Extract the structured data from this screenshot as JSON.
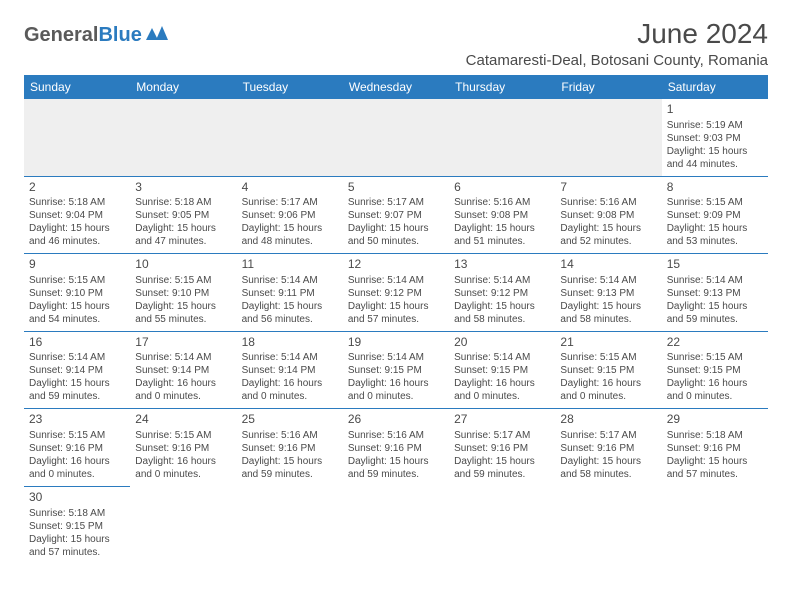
{
  "logo": {
    "part1": "General",
    "part2": "Blue"
  },
  "title": "June 2024",
  "location": "Catamaresti-Deal, Botosani County, Romania",
  "header_color": "#2b7bbf",
  "border_color": "#2b7bbf",
  "empty_bg": "#efefef",
  "days": [
    "Sunday",
    "Monday",
    "Tuesday",
    "Wednesday",
    "Thursday",
    "Friday",
    "Saturday"
  ],
  "weeks": [
    [
      null,
      null,
      null,
      null,
      null,
      null,
      {
        "n": "1",
        "sr": "Sunrise: 5:19 AM",
        "ss": "Sunset: 9:03 PM",
        "dl": "Daylight: 15 hours and 44 minutes."
      }
    ],
    [
      {
        "n": "2",
        "sr": "Sunrise: 5:18 AM",
        "ss": "Sunset: 9:04 PM",
        "dl": "Daylight: 15 hours and 46 minutes."
      },
      {
        "n": "3",
        "sr": "Sunrise: 5:18 AM",
        "ss": "Sunset: 9:05 PM",
        "dl": "Daylight: 15 hours and 47 minutes."
      },
      {
        "n": "4",
        "sr": "Sunrise: 5:17 AM",
        "ss": "Sunset: 9:06 PM",
        "dl": "Daylight: 15 hours and 48 minutes."
      },
      {
        "n": "5",
        "sr": "Sunrise: 5:17 AM",
        "ss": "Sunset: 9:07 PM",
        "dl": "Daylight: 15 hours and 50 minutes."
      },
      {
        "n": "6",
        "sr": "Sunrise: 5:16 AM",
        "ss": "Sunset: 9:08 PM",
        "dl": "Daylight: 15 hours and 51 minutes."
      },
      {
        "n": "7",
        "sr": "Sunrise: 5:16 AM",
        "ss": "Sunset: 9:08 PM",
        "dl": "Daylight: 15 hours and 52 minutes."
      },
      {
        "n": "8",
        "sr": "Sunrise: 5:15 AM",
        "ss": "Sunset: 9:09 PM",
        "dl": "Daylight: 15 hours and 53 minutes."
      }
    ],
    [
      {
        "n": "9",
        "sr": "Sunrise: 5:15 AM",
        "ss": "Sunset: 9:10 PM",
        "dl": "Daylight: 15 hours and 54 minutes."
      },
      {
        "n": "10",
        "sr": "Sunrise: 5:15 AM",
        "ss": "Sunset: 9:10 PM",
        "dl": "Daylight: 15 hours and 55 minutes."
      },
      {
        "n": "11",
        "sr": "Sunrise: 5:14 AM",
        "ss": "Sunset: 9:11 PM",
        "dl": "Daylight: 15 hours and 56 minutes."
      },
      {
        "n": "12",
        "sr": "Sunrise: 5:14 AM",
        "ss": "Sunset: 9:12 PM",
        "dl": "Daylight: 15 hours and 57 minutes."
      },
      {
        "n": "13",
        "sr": "Sunrise: 5:14 AM",
        "ss": "Sunset: 9:12 PM",
        "dl": "Daylight: 15 hours and 58 minutes."
      },
      {
        "n": "14",
        "sr": "Sunrise: 5:14 AM",
        "ss": "Sunset: 9:13 PM",
        "dl": "Daylight: 15 hours and 58 minutes."
      },
      {
        "n": "15",
        "sr": "Sunrise: 5:14 AM",
        "ss": "Sunset: 9:13 PM",
        "dl": "Daylight: 15 hours and 59 minutes."
      }
    ],
    [
      {
        "n": "16",
        "sr": "Sunrise: 5:14 AM",
        "ss": "Sunset: 9:14 PM",
        "dl": "Daylight: 15 hours and 59 minutes."
      },
      {
        "n": "17",
        "sr": "Sunrise: 5:14 AM",
        "ss": "Sunset: 9:14 PM",
        "dl": "Daylight: 16 hours and 0 minutes."
      },
      {
        "n": "18",
        "sr": "Sunrise: 5:14 AM",
        "ss": "Sunset: 9:14 PM",
        "dl": "Daylight: 16 hours and 0 minutes."
      },
      {
        "n": "19",
        "sr": "Sunrise: 5:14 AM",
        "ss": "Sunset: 9:15 PM",
        "dl": "Daylight: 16 hours and 0 minutes."
      },
      {
        "n": "20",
        "sr": "Sunrise: 5:14 AM",
        "ss": "Sunset: 9:15 PM",
        "dl": "Daylight: 16 hours and 0 minutes."
      },
      {
        "n": "21",
        "sr": "Sunrise: 5:15 AM",
        "ss": "Sunset: 9:15 PM",
        "dl": "Daylight: 16 hours and 0 minutes."
      },
      {
        "n": "22",
        "sr": "Sunrise: 5:15 AM",
        "ss": "Sunset: 9:15 PM",
        "dl": "Daylight: 16 hours and 0 minutes."
      }
    ],
    [
      {
        "n": "23",
        "sr": "Sunrise: 5:15 AM",
        "ss": "Sunset: 9:16 PM",
        "dl": "Daylight: 16 hours and 0 minutes."
      },
      {
        "n": "24",
        "sr": "Sunrise: 5:15 AM",
        "ss": "Sunset: 9:16 PM",
        "dl": "Daylight: 16 hours and 0 minutes."
      },
      {
        "n": "25",
        "sr": "Sunrise: 5:16 AM",
        "ss": "Sunset: 9:16 PM",
        "dl": "Daylight: 15 hours and 59 minutes."
      },
      {
        "n": "26",
        "sr": "Sunrise: 5:16 AM",
        "ss": "Sunset: 9:16 PM",
        "dl": "Daylight: 15 hours and 59 minutes."
      },
      {
        "n": "27",
        "sr": "Sunrise: 5:17 AM",
        "ss": "Sunset: 9:16 PM",
        "dl": "Daylight: 15 hours and 59 minutes."
      },
      {
        "n": "28",
        "sr": "Sunrise: 5:17 AM",
        "ss": "Sunset: 9:16 PM",
        "dl": "Daylight: 15 hours and 58 minutes."
      },
      {
        "n": "29",
        "sr": "Sunrise: 5:18 AM",
        "ss": "Sunset: 9:16 PM",
        "dl": "Daylight: 15 hours and 57 minutes."
      }
    ],
    [
      {
        "n": "30",
        "sr": "Sunrise: 5:18 AM",
        "ss": "Sunset: 9:15 PM",
        "dl": "Daylight: 15 hours and 57 minutes."
      },
      null,
      null,
      null,
      null,
      null,
      null
    ]
  ]
}
